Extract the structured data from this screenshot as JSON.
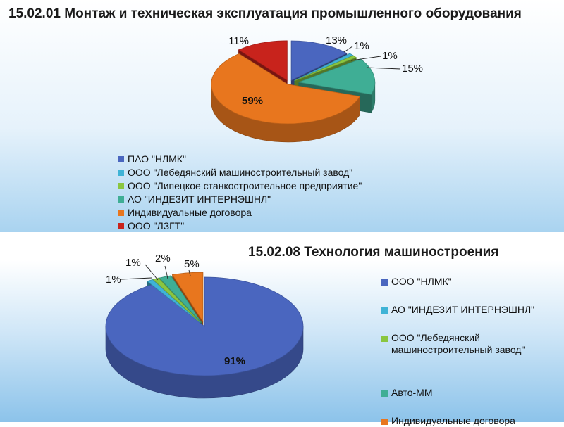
{
  "slide": {
    "chart1_title": "15.02.01 Монтаж и техническая эксплуатация промышленного оборудования",
    "chart2_title": "15.02.08 Технология машиностроения"
  },
  "chart_data": [
    {
      "type": "pie",
      "title": "15.02.01 Монтаж и техническая эксплуатация промышленного оборудования",
      "legend_position": "bottom",
      "slices": [
        {
          "name": "ПАО \"НЛМК\"",
          "value": 13,
          "label": "13%",
          "color": "#4a66bf"
        },
        {
          "name": "ООО \"Лебедянский машиностроительный завод\"",
          "value": 1,
          "label": "1%",
          "color": "#3fb3d6"
        },
        {
          "name": "ООО \"Липецкое станкостроительное предприятие\"",
          "value": 1,
          "label": "1%",
          "color": "#8ac640"
        },
        {
          "name": "АО \"ИНДЕЗИТ ИНТЕРНЭШНЛ\"",
          "value": 15,
          "label": "15%",
          "color": "#3fae95"
        },
        {
          "name": "Индивидуальные договора",
          "value": 59,
          "label": "59%",
          "color": "#e8761e"
        },
        {
          "name": "ООО \"ЛЗГТ\"",
          "value": 11,
          "label": "11%",
          "color": "#c8231c"
        }
      ]
    },
    {
      "type": "pie",
      "title": "15.02.08 Технология машиностроения",
      "legend_position": "right",
      "slices": [
        {
          "name": "ООО \"НЛМК\"",
          "value": 91,
          "label": "91%",
          "color": "#4a66bf"
        },
        {
          "name": "АО \"ИНДЕЗИТ ИНТЕРНЭШНЛ\"",
          "value": 1,
          "label": "1%",
          "color": "#3fb3d6"
        },
        {
          "name": "ООО \"Лебедянский машиностроительный завод\"",
          "value": 1,
          "label": "1%",
          "color": "#8ac640"
        },
        {
          "name": "Авто-ММ",
          "value": 2,
          "label": "2%",
          "color": "#3fae95"
        },
        {
          "name": "Индивидуальные договора",
          "value": 5,
          "label": "5%",
          "color": "#e8761e"
        }
      ]
    }
  ]
}
